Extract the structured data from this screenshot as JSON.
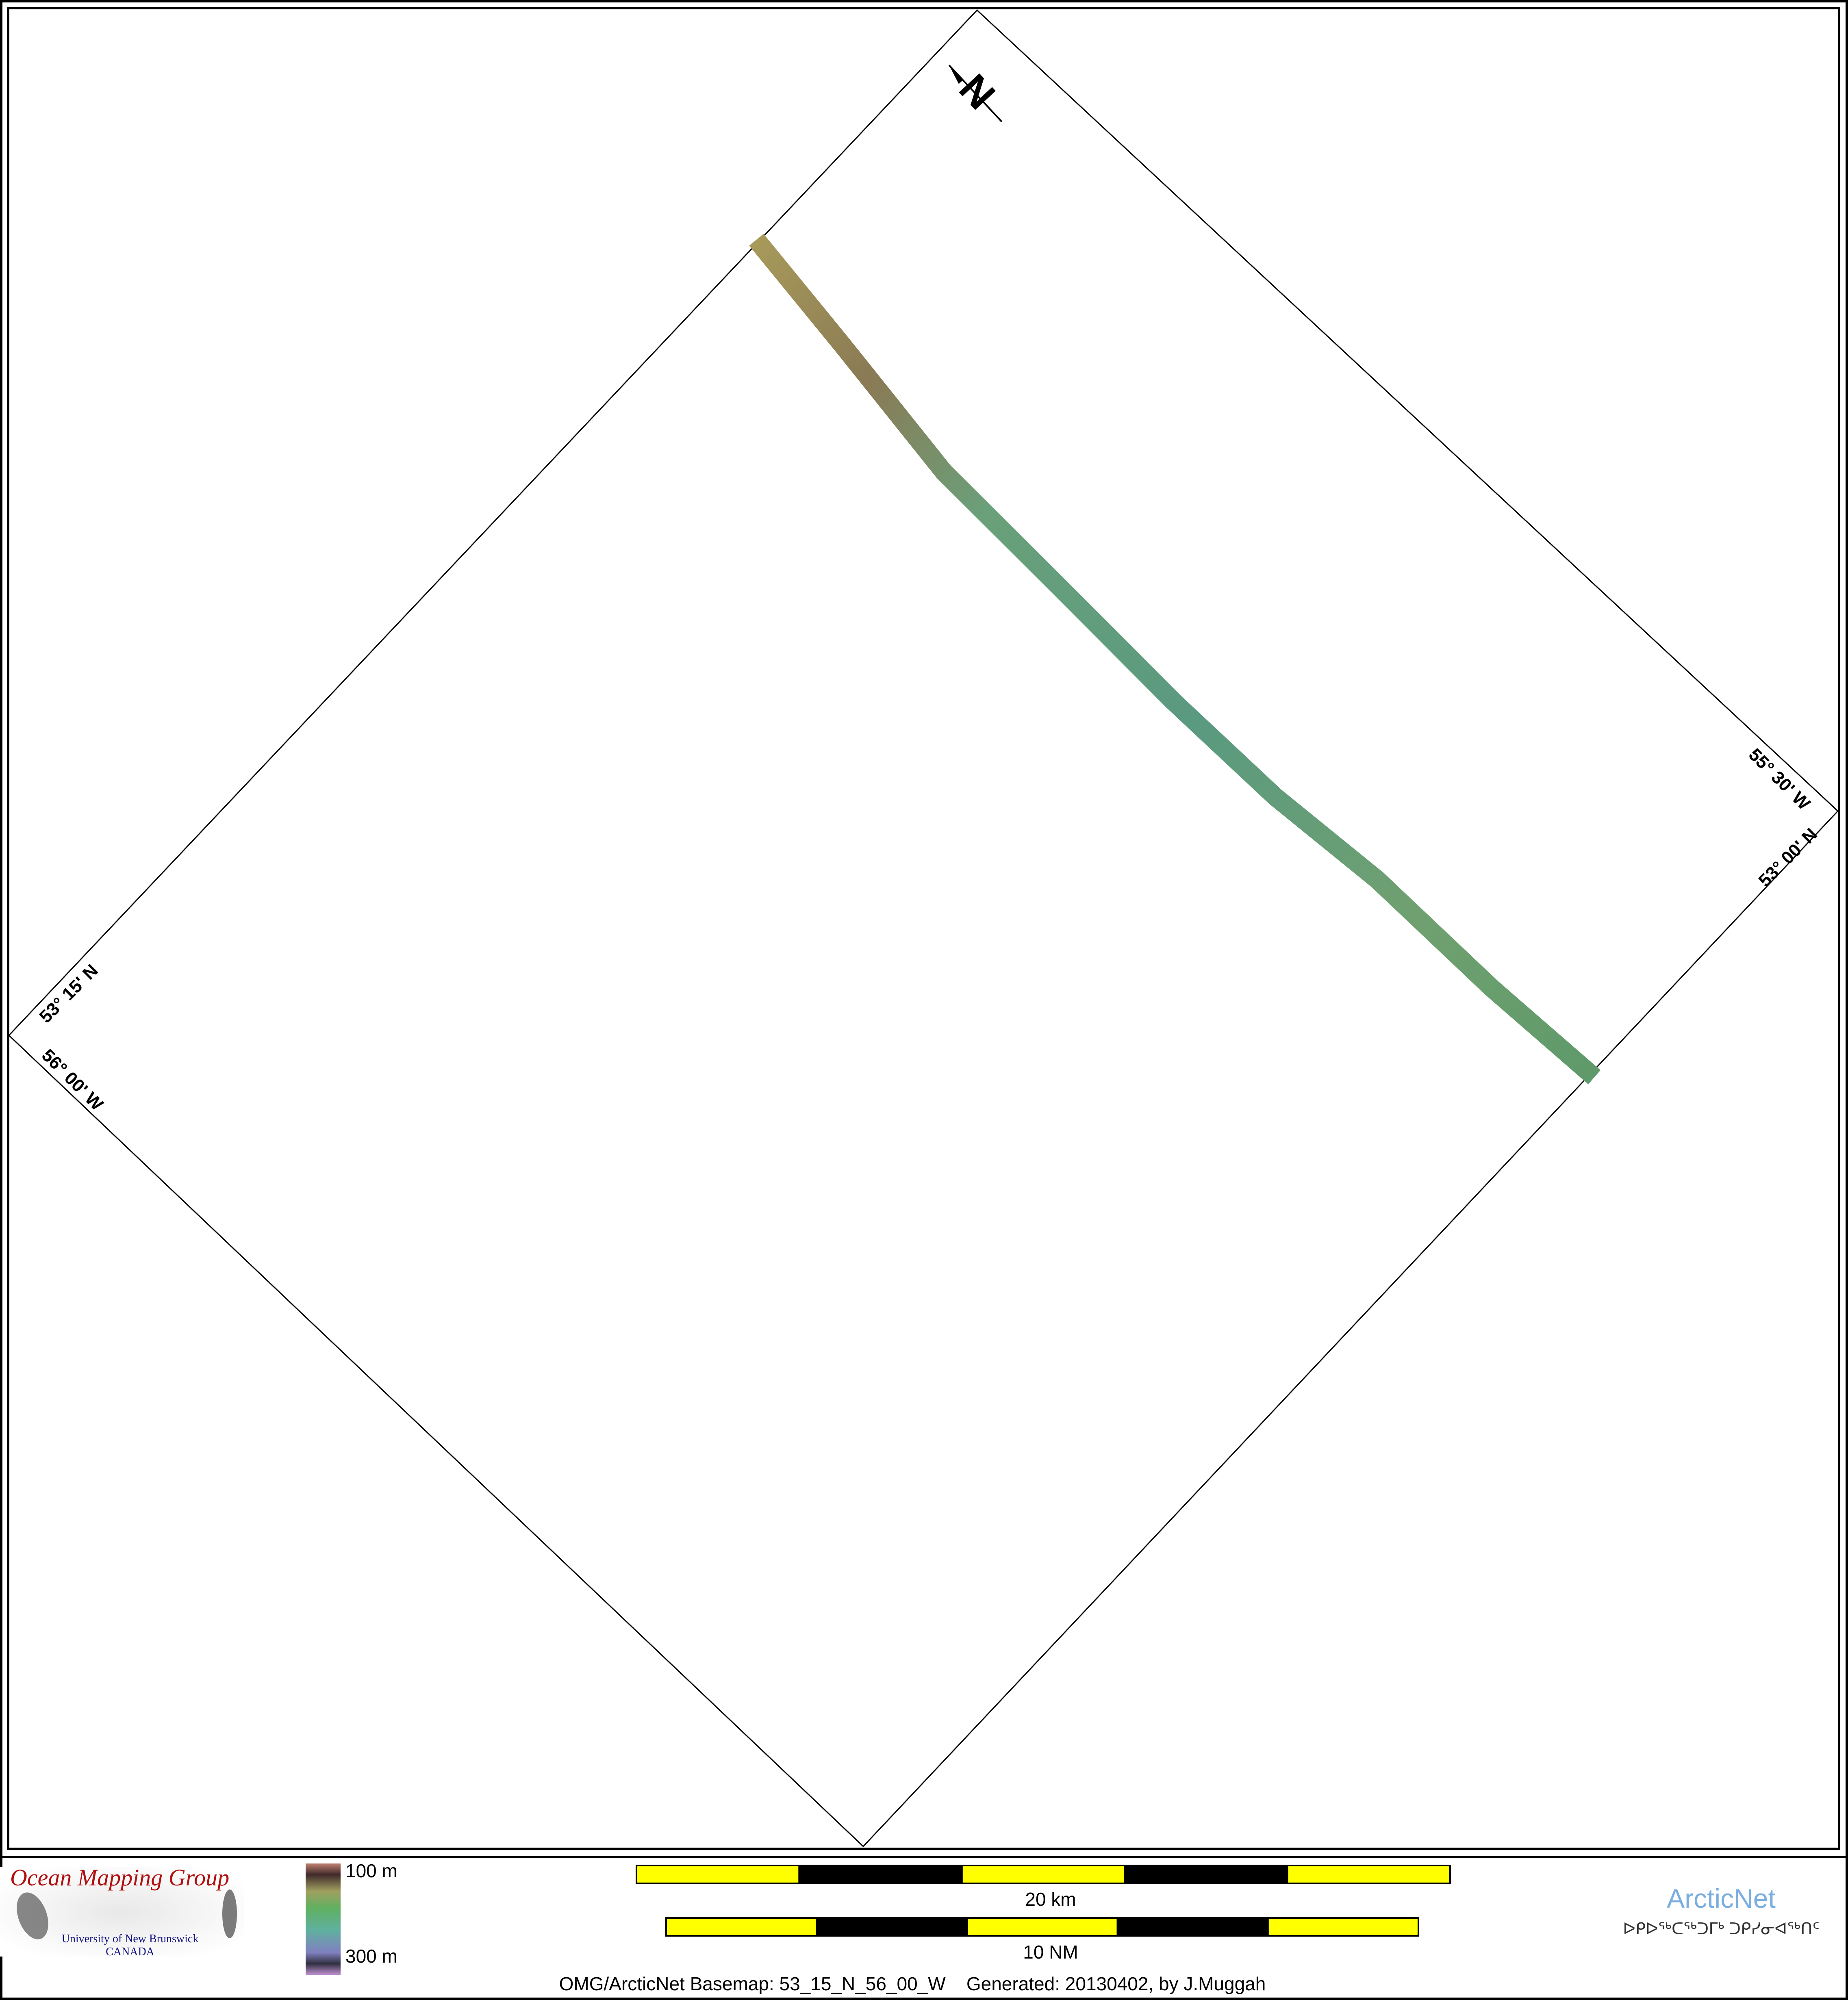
{
  "map": {
    "north_label": "N",
    "grid_labels": {
      "top_right_lon": "55° 30' W",
      "right_lat": "53° 00' N",
      "left_lat": "53° 15' N",
      "left_lon": "56° 00' W"
    },
    "track_colors": [
      "#a89a5a",
      "#8a7a55",
      "#6aa07a",
      "#5a9a80",
      "#70a070",
      "#5f9a6a"
    ]
  },
  "legend": {
    "depth_min": "100 m",
    "depth_max": "300 m",
    "colorbar_colors": [
      "#c08070",
      "#a0a060",
      "#60b060",
      "#60b0a0",
      "#8080c0",
      "#c090d0"
    ]
  },
  "scale_bars": {
    "km_label": "20 km",
    "nm_label": "10 NM",
    "colors": [
      "#ffff00",
      "#000000"
    ]
  },
  "logos": {
    "omg_title": "Ocean Mapping Group",
    "omg_univ": "University of New Brunswick",
    "omg_country": "CANADA",
    "arcticnet": "ArcticNet",
    "arcticnet_syllabics": "ᐅᑭᐅᖅᑕᖅᑐᒥᒃ ᑐᑭᓯᓂᐊᖅᑎᑦ"
  },
  "footer": {
    "caption": "OMG/ArcticNet Basemap: 53_15_N_56_00_W    Generated: 20130402, by J.Muggah"
  }
}
